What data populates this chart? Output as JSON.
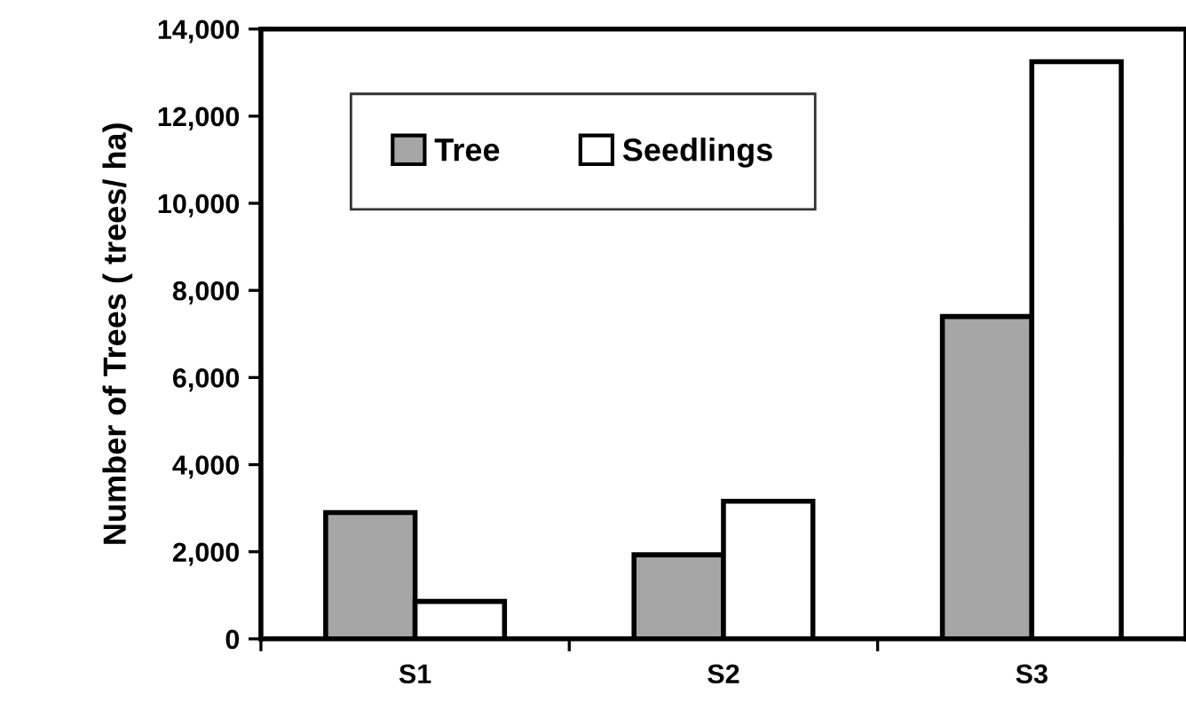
{
  "chart_data": {
    "type": "bar",
    "ylabel": "Number of Trees ( trees/ ha)",
    "categories": [
      "S1",
      "S2",
      "S3"
    ],
    "series": [
      {
        "name": "Tree",
        "color": "#a6a6a6",
        "values": [
          2900,
          1930,
          7400
        ]
      },
      {
        "name": "Seedlings",
        "color": "#ffffff",
        "values": [
          860,
          3160,
          13250
        ]
      }
    ],
    "ylim": [
      0,
      14000
    ],
    "yticks": [
      {
        "value": 0,
        "label": "0"
      },
      {
        "value": 2000,
        "label": "2,000"
      },
      {
        "value": 4000,
        "label": "4,000"
      },
      {
        "value": 6000,
        "label": "6,000"
      },
      {
        "value": 8000,
        "label": "8,000"
      },
      {
        "value": 10000,
        "label": "10,000"
      },
      {
        "value": 12000,
        "label": "12,000"
      },
      {
        "value": 14000,
        "label": "14,000"
      }
    ],
    "grid": false,
    "legend": "top left"
  }
}
